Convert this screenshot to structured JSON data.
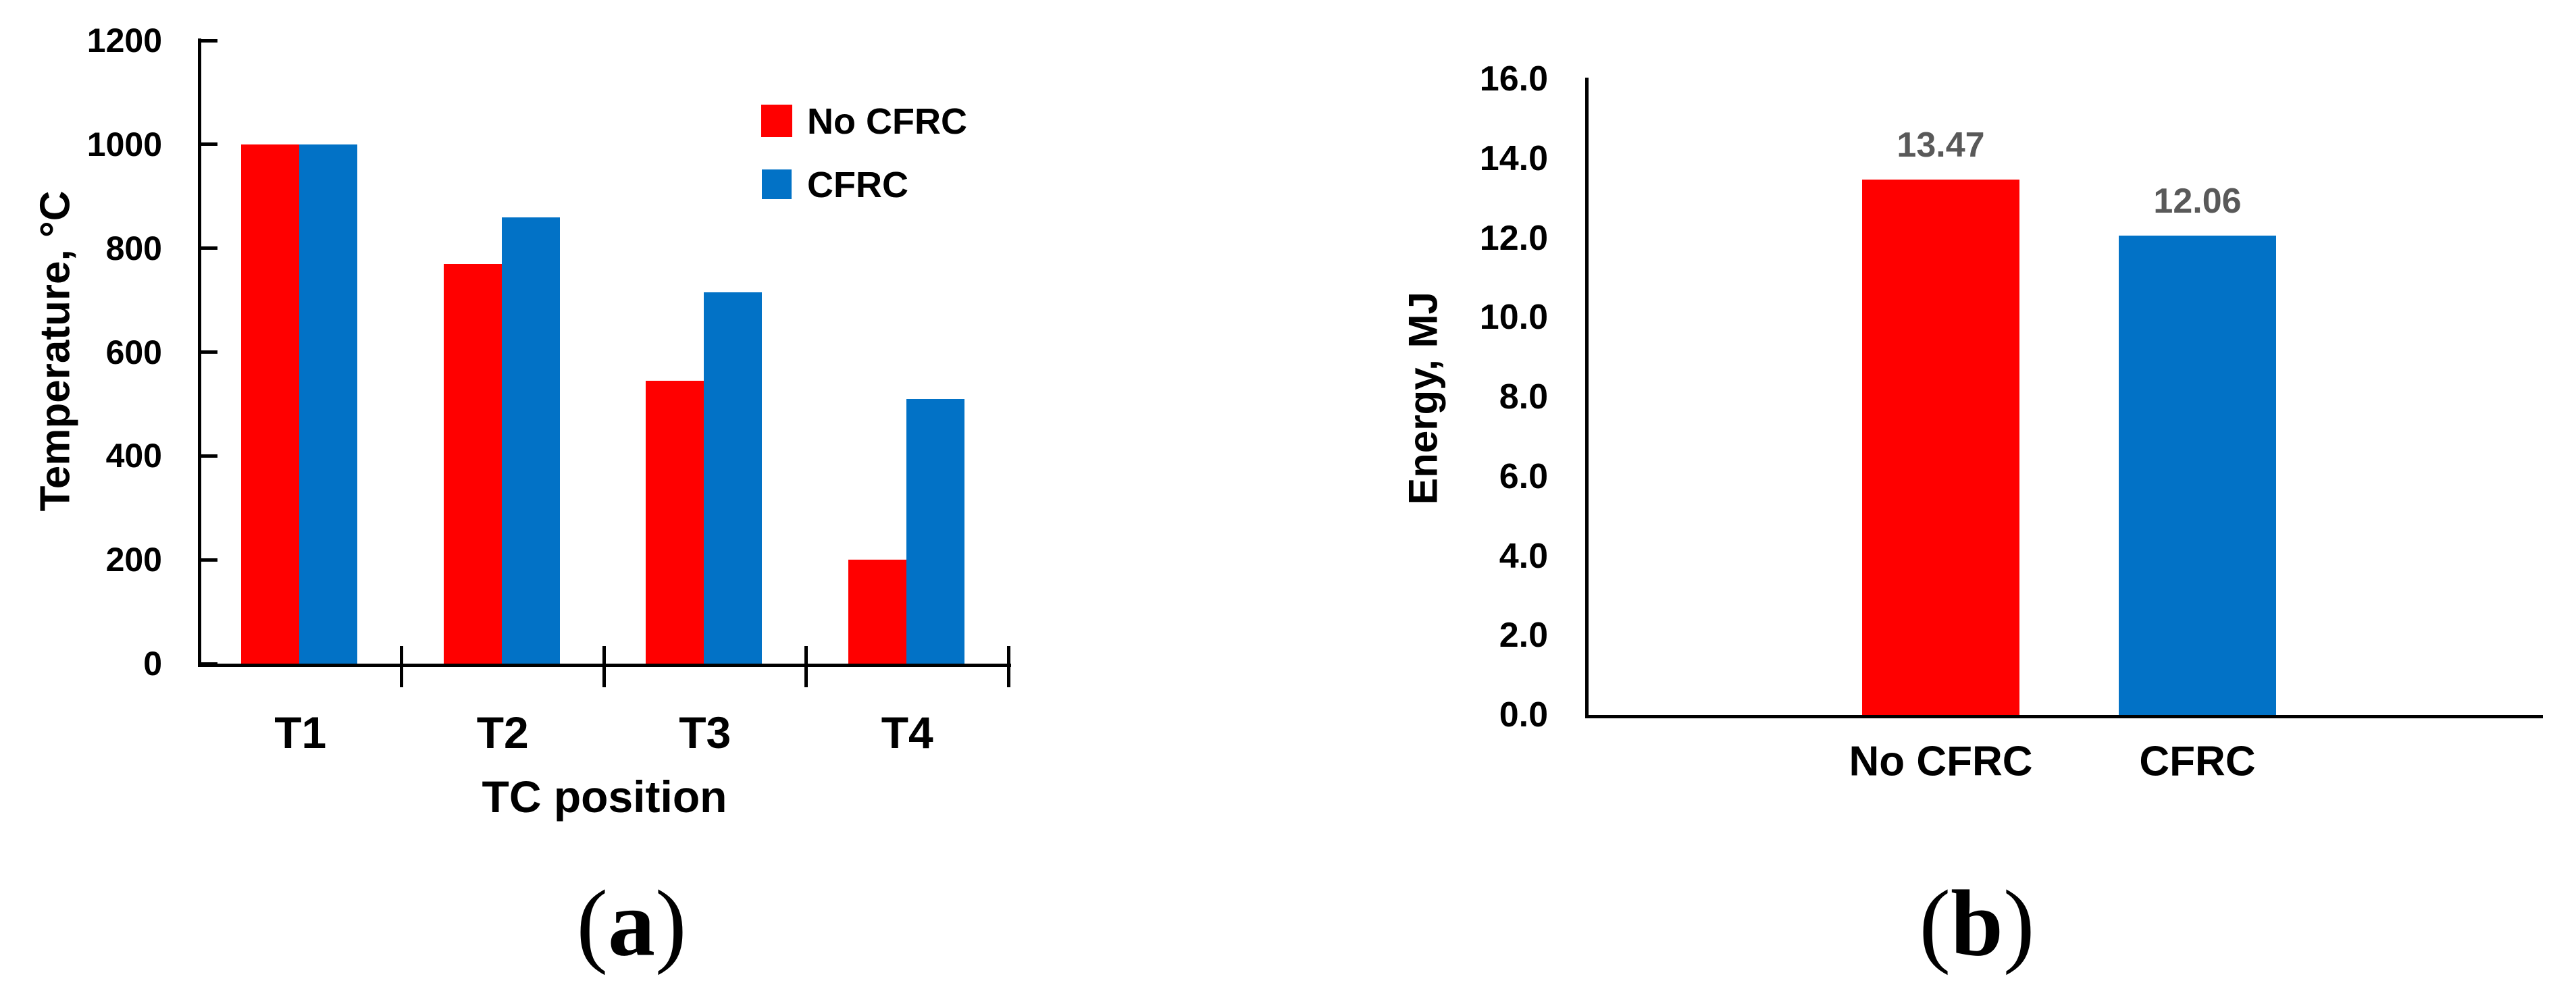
{
  "figure": {
    "captions": [
      {
        "open": "(",
        "letter": "a",
        "close": ")"
      },
      {
        "open": "(",
        "letter": "b",
        "close": ")"
      }
    ]
  },
  "colors": {
    "no_cfrc_red": "#FF0000",
    "cfrc_blue": "#0272C6",
    "value_label_gray": "#595959",
    "axis_black": "#000000"
  },
  "chart_data": [
    {
      "id": "temperature",
      "type": "bar",
      "title": "",
      "categories": [
        "T1",
        "T2",
        "T3",
        "T4"
      ],
      "series": [
        {
          "name": "No CFRC",
          "color_key": "no_cfrc_red",
          "values": [
            1000,
            770,
            545,
            200
          ]
        },
        {
          "name": "CFRC",
          "color_key": "cfrc_blue",
          "values": [
            1000,
            860,
            715,
            510
          ]
        }
      ],
      "xlabel": "TC position",
      "ylabel": "Temperature, °C",
      "ylim": [
        0,
        1200
      ],
      "yticks": [
        0,
        200,
        400,
        600,
        800,
        1000,
        1200
      ],
      "ytick_labels": [
        "0",
        "200",
        "400",
        "600",
        "800",
        "1000",
        "1200"
      ],
      "legend_entries": [
        "No CFRC",
        "CFRC"
      ],
      "legend_position": "top-right-inside",
      "grid": false
    },
    {
      "id": "energy",
      "type": "bar",
      "title": "",
      "categories": [
        "No CFRC",
        "CFRC"
      ],
      "values": [
        13.47,
        12.06
      ],
      "value_labels": [
        "13.47",
        "12.06"
      ],
      "bar_color_keys": [
        "no_cfrc_red",
        "cfrc_blue"
      ],
      "xlabel": "",
      "ylabel": "Energy, MJ",
      "ylim": [
        0,
        16
      ],
      "yticks": [
        0,
        2,
        4,
        6,
        8,
        10,
        12,
        14,
        16
      ],
      "ytick_labels": [
        "0.0",
        "2.0",
        "4.0",
        "6.0",
        "8.0",
        "10.0",
        "12.0",
        "14.0",
        "16.0"
      ],
      "grid": false
    }
  ]
}
